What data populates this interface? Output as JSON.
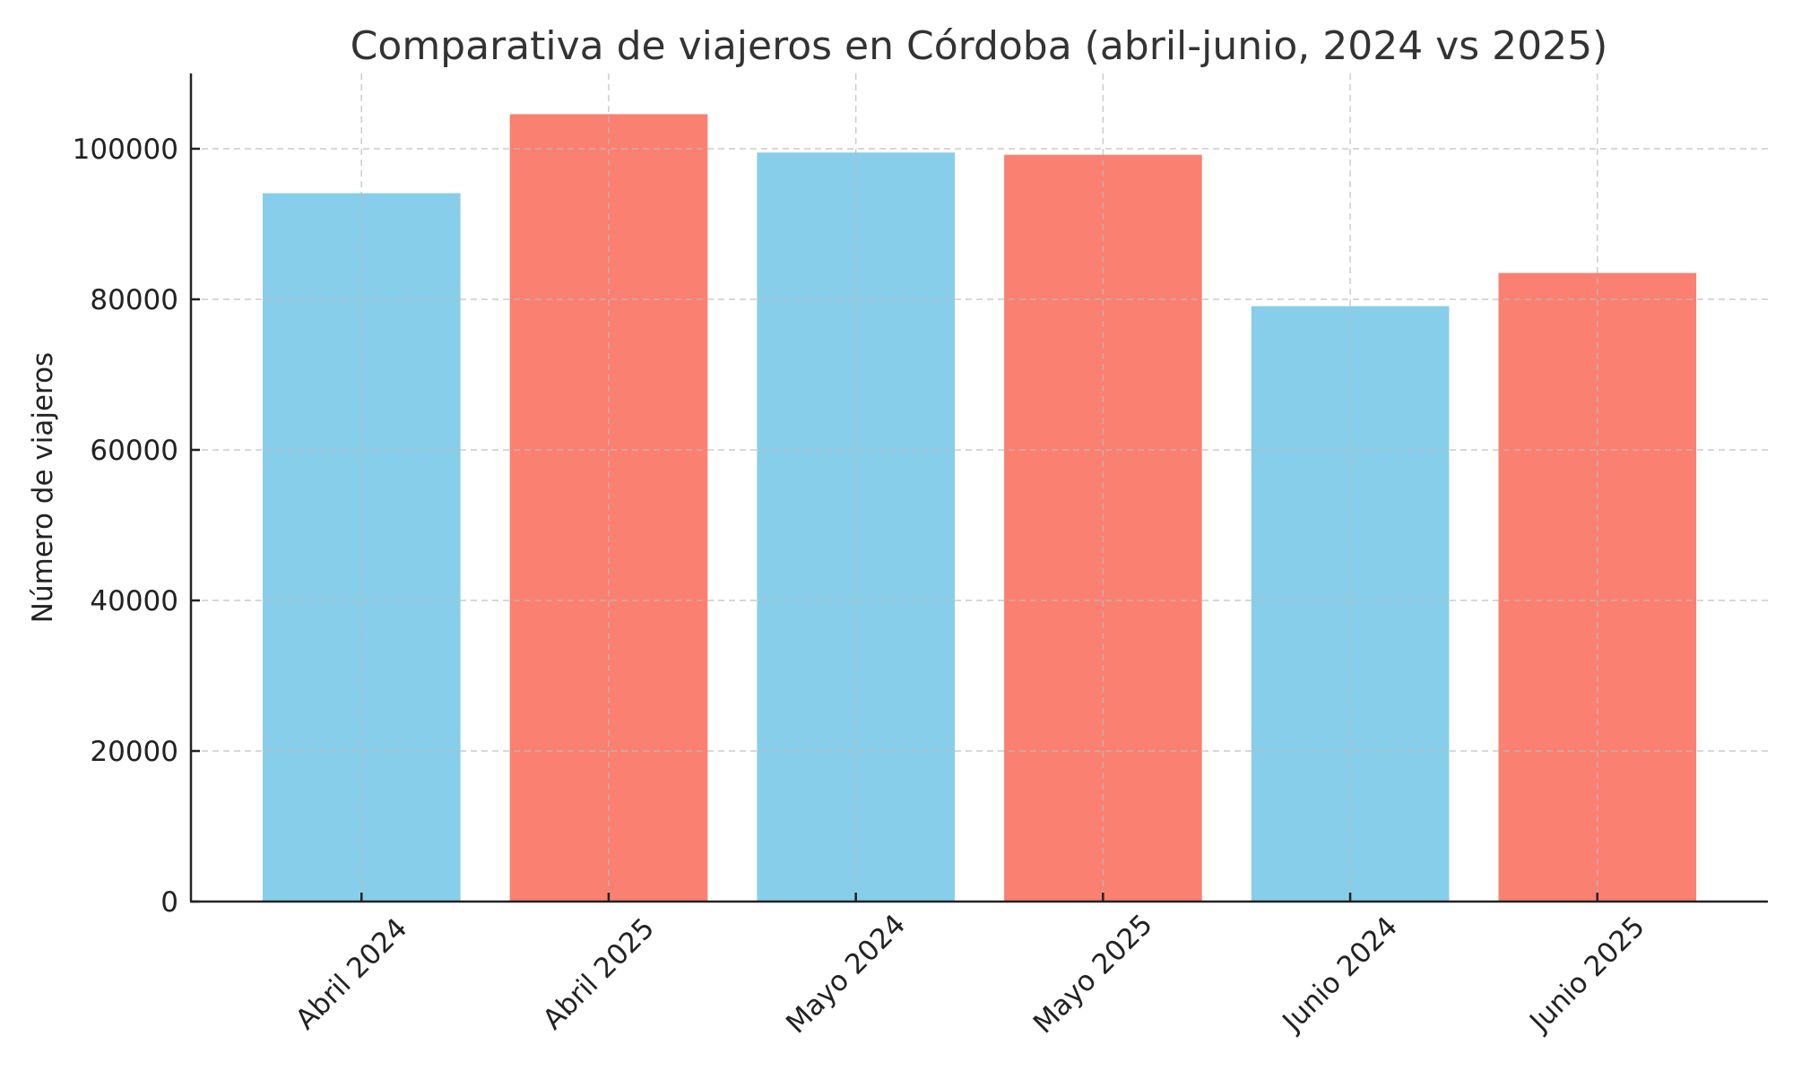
{
  "chart_data": {
    "type": "bar",
    "title": "Comparativa de viajeros en Córdoba (abril-junio, 2024 vs 2025)",
    "xlabel": "",
    "ylabel": "Número de viajeros",
    "categories": [
      "Abril 2024",
      "Abril 2025",
      "Mayo 2024",
      "Mayo 2025",
      "Junio 2024",
      "Junio 2025"
    ],
    "values": [
      94100,
      104600,
      99500,
      99200,
      79100,
      83500
    ],
    "bar_colors": [
      "#87CEEB",
      "#FA8072",
      "#87CEEB",
      "#FA8072",
      "#87CEEB",
      "#FA8072"
    ],
    "series_colors": {
      "2024": "#87CEEB",
      "2025": "#FA8072"
    },
    "ylim": [
      0,
      110000
    ],
    "yticks": [
      0,
      20000,
      40000,
      60000,
      80000,
      100000
    ],
    "ytick_labels": [
      "0",
      "20000",
      "40000",
      "60000",
      "80000",
      "100000"
    ],
    "xtick_rotation": 45,
    "grid": true,
    "grid_style": "dashed",
    "legend": null
  }
}
